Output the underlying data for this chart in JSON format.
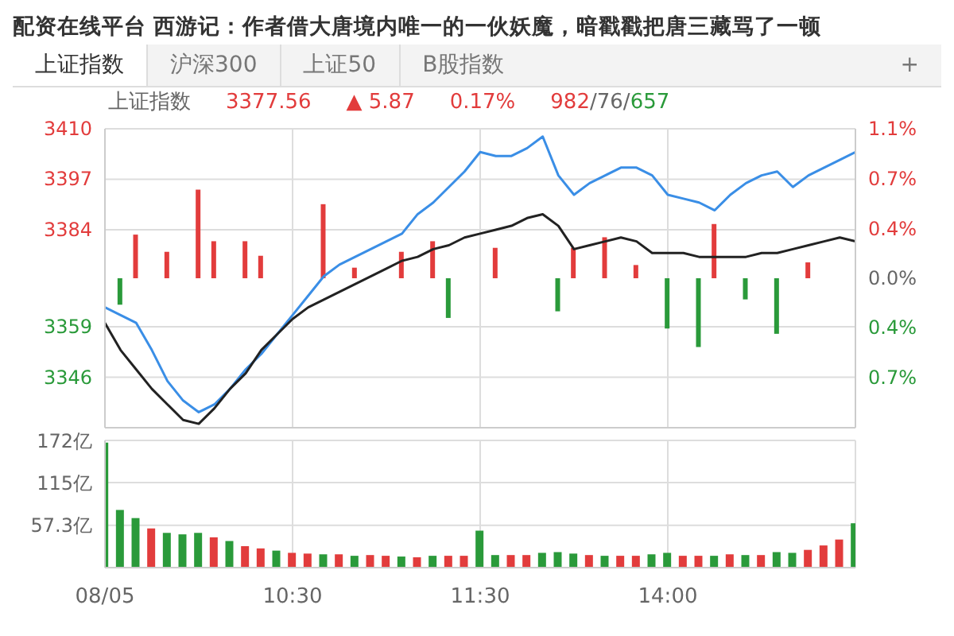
{
  "chart_data": [
    {
      "type": "line",
      "title": "配资在线平台 西游记：作者借大唐境内唯一的一伙妖魔，暗戳戳把唐三藏骂了一顿",
      "annotations": [
        "上证指数",
        "沪深300",
        "上证50",
        "B股指数",
        "+",
        "上证指数",
        "3377.56",
        "▲ 5.87",
        "0.17%",
        "982/76/657"
      ],
      "categories": [
        null,
        null,
        null,
        null,
        null,
        null,
        null,
        null,
        null,
        null,
        null,
        null,
        null,
        null,
        null,
        null,
        null,
        null,
        null,
        null,
        null,
        null,
        null,
        null,
        null,
        null,
        null,
        null,
        null,
        null,
        null,
        null,
        null,
        null,
        null,
        null,
        null,
        null,
        null,
        null,
        null,
        null,
        null,
        null,
        null,
        null,
        null,
        null,
        null
      ],
      "ylim": [
        3333,
        3410
      ],
      "yticks": [
        3346,
        3359,
        3384,
        3397,
        3410
      ],
      "y2lim": [
        -1.13,
        1.13
      ],
      "y2ticks": [
        {
          "value": 1.13,
          "label": "1.1%"
        },
        {
          "value": 0.75,
          "label": "0.7%"
        },
        {
          "value": 0.37,
          "label": "0.4%"
        },
        {
          "value": 0,
          "label": "0.0%"
        },
        {
          "value": -0.37,
          "label": "0.4%"
        },
        {
          "value": -0.75,
          "label": "0.7%"
        }
      ],
      "grid": true,
      "tick_labels": "y",
      "series": [
        {
          "type": "bar",
          "axis": "y2",
          "values": [
            null,
            -0.2,
            0.33,
            null,
            0.2,
            null,
            0.67,
            0.28,
            null,
            0.28,
            0.17,
            null,
            null,
            null,
            0.56,
            null,
            0.08,
            null,
            null,
            0.2,
            null,
            0.28,
            -0.3,
            null,
            null,
            0.23,
            null,
            null,
            null,
            -0.25,
            0.23,
            null,
            0.31,
            null,
            0.1,
            null,
            -0.38,
            null,
            -0.52,
            0.41,
            null,
            -0.16,
            null,
            -0.42,
            null,
            0.12,
            null,
            null,
            null
          ],
          "colors": [
            null,
            "#2a9a3a",
            "#e23c3c",
            null,
            "#e23c3c",
            null,
            "#e23c3c",
            "#e23c3c",
            null,
            "#e23c3c",
            "#e23c3c",
            null,
            null,
            null,
            "#e23c3c",
            null,
            "#e23c3c",
            null,
            null,
            "#e23c3c",
            null,
            "#e23c3c",
            "#2a9a3a",
            null,
            null,
            "#e23c3c",
            null,
            null,
            null,
            "#2a9a3a",
            "#e23c3c",
            null,
            "#e23c3c",
            null,
            "#e23c3c",
            null,
            "#2a9a3a",
            null,
            "#2a9a3a",
            "#e23c3c",
            null,
            "#2a9a3a",
            null,
            "#2a9a3a",
            null,
            "#e23c3c",
            null,
            null,
            null
          ]
        },
        {
          "color": "#3a8ee6",
          "values": [
            3364,
            3362,
            3360,
            3353,
            3345,
            3340,
            3337,
            3339,
            3343,
            3348,
            3352,
            3357,
            3362,
            3367,
            3372,
            3375,
            3377,
            3379,
            3381,
            3383,
            3388,
            3391,
            3395,
            3399,
            3404,
            3403,
            3403,
            3405,
            3408,
            3398,
            3393,
            3396,
            3398,
            3400,
            3400,
            3398,
            3393,
            3392,
            3391,
            3389,
            3393,
            3396,
            3398,
            3399,
            3395,
            3398,
            3400,
            3402,
            3404
          ]
        },
        {
          "color": "#222222",
          "values": [
            3360,
            3353,
            3348,
            3343,
            3339,
            3335,
            3334,
            3338,
            3343,
            3347,
            3353,
            3357,
            3361,
            3364,
            3366,
            3368,
            3370,
            3372,
            3374,
            3376,
            3377,
            3379,
            3380,
            3382,
            3383,
            3384,
            3385,
            3387,
            3388,
            3385,
            3379,
            3380,
            3381,
            3382,
            3381,
            3378,
            3378,
            3378,
            3377,
            3377,
            3377,
            3377,
            3378,
            3378,
            3379,
            3380,
            3381,
            3382,
            3381
          ]
        }
      ]
    },
    {
      "type": "bar",
      "categories": [
        "08/05",
        null,
        null,
        null,
        null,
        null,
        null,
        null,
        null,
        null,
        null,
        null,
        "10:30",
        null,
        null,
        null,
        null,
        null,
        null,
        null,
        null,
        null,
        null,
        null,
        "11:30",
        null,
        null,
        null,
        null,
        null,
        null,
        null,
        null,
        null,
        null,
        null,
        "14:00",
        null,
        null,
        null,
        null,
        null,
        null,
        null,
        null,
        null,
        null,
        null,
        null
      ],
      "ylim": [
        0,
        172
      ],
      "yticks": [
        {
          "value": 57.3,
          "label": "57.3亿"
        },
        {
          "value": 115,
          "label": "115亿"
        },
        {
          "value": 172,
          "label": "172亿"
        }
      ],
      "grid": true,
      "values": [
        169,
        78,
        67,
        53,
        47,
        45,
        47,
        41,
        36,
        29,
        26,
        23,
        20,
        19,
        18,
        18,
        16,
        17,
        16,
        15,
        14,
        16,
        16,
        16,
        50,
        17,
        17,
        17,
        20,
        21,
        19,
        17,
        16,
        16,
        16,
        18,
        20,
        16,
        16,
        16,
        18,
        17,
        17,
        21,
        20,
        24,
        30,
        38,
        60
      ],
      "colors": [
        "#2a9a3a",
        "#2a9a3a",
        "#2a9a3a",
        "#e23c3c",
        "#2a9a3a",
        "#2a9a3a",
        "#2a9a3a",
        "#e23c3c",
        "#2a9a3a",
        "#e23c3c",
        "#e23c3c",
        "#2a9a3a",
        "#e23c3c",
        "#e23c3c",
        "#2a9a3a",
        "#e23c3c",
        "#2a9a3a",
        "#e23c3c",
        "#e23c3c",
        "#2a9a3a",
        "#e23c3c",
        "#2a9a3a",
        "#e23c3c",
        "#e23c3c",
        "#2a9a3a",
        "#2a9a3a",
        "#e23c3c",
        "#e23c3c",
        "#2a9a3a",
        "#2a9a3a",
        "#2a9a3a",
        "#e23c3c",
        "#2a9a3a",
        "#e23c3c",
        "#e23c3c",
        "#2a9a3a",
        "#2a9a3a",
        "#e23c3c",
        "#e23c3c",
        "#2a9a3a",
        "#e23c3c",
        "#2a9a3a",
        "#e23c3c",
        "#2a9a3a",
        "#2a9a3a",
        "#e23c3c",
        "#e23c3c",
        "#e23c3c",
        "#2a9a3a"
      ]
    }
  ]
}
